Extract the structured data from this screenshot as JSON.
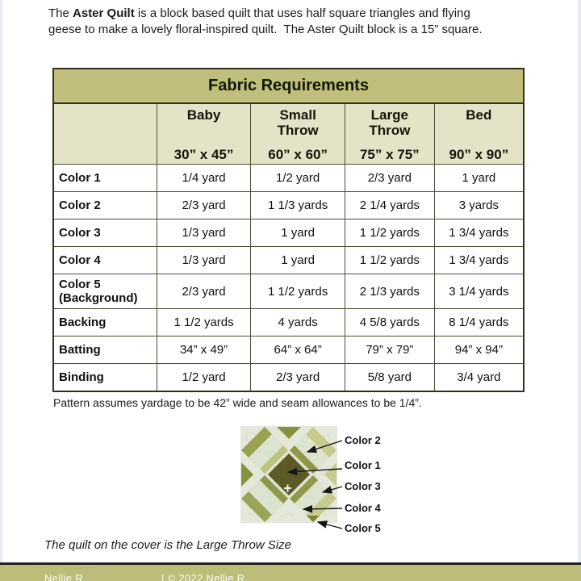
{
  "intro": {
    "pre": "The ",
    "bold": "Aster Quilt",
    "post": " is a block based quilt that uses half square triangles and flying\ngeese to make a lovely floral-inspired quilt.  The Aster Quilt block is a 15” square."
  },
  "table": {
    "title": "Fabric Requirements",
    "columns": [
      {
        "name": "Baby",
        "size": "30” x 45”"
      },
      {
        "name": "Small\nThrow",
        "size": "60” x 60”"
      },
      {
        "name": "Large\nThrow",
        "size": "75” x 75”"
      },
      {
        "name": "Bed",
        "size": "90” x 90”"
      }
    ],
    "rows": [
      {
        "label": "Color 1",
        "values": [
          "1/4 yard",
          "1/2 yard",
          "2/3 yard",
          "1 yard"
        ]
      },
      {
        "label": "Color 2",
        "values": [
          "2/3 yard",
          "1 1/3 yards",
          "2 1/4 yards",
          "3 yards"
        ]
      },
      {
        "label": "Color 3",
        "values": [
          "1/3 yard",
          "1 yard",
          "1 1/2 yards",
          "1 3/4 yards"
        ]
      },
      {
        "label": "Color 4",
        "values": [
          "1/3 yard",
          "1 yard",
          "1 1/2 yards",
          "1 3/4 yards"
        ]
      },
      {
        "label": "Color 5 (Background)",
        "values": [
          "2/3 yard",
          "1 1/2 yards",
          "2 1/3 yards",
          "3 1/4 yards"
        ]
      },
      {
        "label": "Backing",
        "values": [
          "1 1/2 yards",
          "4 yards",
          "4 5/8 yards",
          "8 1/4 yards"
        ]
      },
      {
        "label": "Batting",
        "values": [
          "34” x 49”",
          "64” x 64”",
          "79” x 79”",
          "94” x 94”"
        ]
      },
      {
        "label": "Binding",
        "values": [
          "1/2 yard",
          "2/3 yard",
          "5/8 yard",
          "3/4 yard"
        ]
      }
    ]
  },
  "note": "Pattern assumes yardage to be 42” wide and seam allowances to be 1/4”.",
  "diagram": {
    "labels": [
      "Color 2",
      "Color 1",
      "Color 3",
      "Color 4",
      "Color 5"
    ]
  },
  "cover_note": "The quilt on the cover is the Large Throw Size",
  "footer": {
    "left_partial": "Nellie R",
    "right_partial": "| © 2022 Nellie R"
  },
  "colors": {
    "table_title_bg": "#bfbe7a",
    "table_header_bg": "#e3e4c7",
    "footer_bg": "#bdbc78",
    "color1_dark_olive": "#5b5a27",
    "color2_pale_print": "#dce3cf",
    "color3_light_green": "#c7cb8d",
    "color4_olive_green": "#98a14e",
    "color5_background": "#e4e8da"
  }
}
